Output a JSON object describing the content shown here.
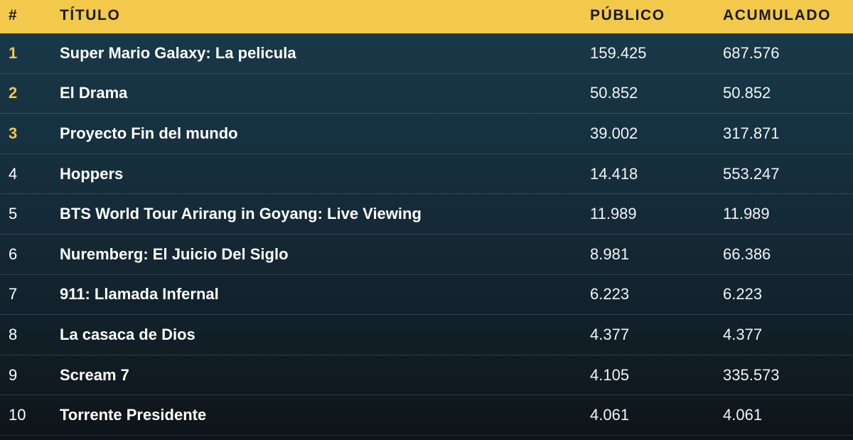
{
  "header": {
    "num": "#",
    "title": "TÍTULO",
    "public": "PÚBLICO",
    "total": "ACUMULADO"
  },
  "colors": {
    "header_bg": "#f3c94b",
    "highlight_rank": "#f3c94b",
    "background_top": "#193a4b",
    "background_bottom": "#0e1418"
  },
  "rows": [
    {
      "rank": "1",
      "title": "Super Mario Galaxy: La pelicula",
      "public": "159.425",
      "total": "687.576"
    },
    {
      "rank": "2",
      "title": "El Drama",
      "public": "50.852",
      "total": "50.852"
    },
    {
      "rank": "3",
      "title": "Proyecto Fin del mundo",
      "public": "39.002",
      "total": "317.871"
    },
    {
      "rank": "4",
      "title": "Hoppers",
      "public": "14.418",
      "total": "553.247"
    },
    {
      "rank": "5",
      "title": "BTS World Tour Arirang in Goyang: Live Viewing",
      "public": "11.989",
      "total": "11.989"
    },
    {
      "rank": "6",
      "title": "Nuremberg: El Juicio Del Siglo",
      "public": "8.981",
      "total": "66.386"
    },
    {
      "rank": "7",
      "title": "911: Llamada Infernal",
      "public": "6.223",
      "total": "6.223"
    },
    {
      "rank": "8",
      "title": "La casaca de Dios",
      "public": "4.377",
      "total": "4.377"
    },
    {
      "rank": "9",
      "title": "Scream 7",
      "public": "4.105",
      "total": "335.573"
    },
    {
      "rank": "10",
      "title": "Torrente Presidente",
      "public": "4.061",
      "total": "4.061"
    }
  ]
}
